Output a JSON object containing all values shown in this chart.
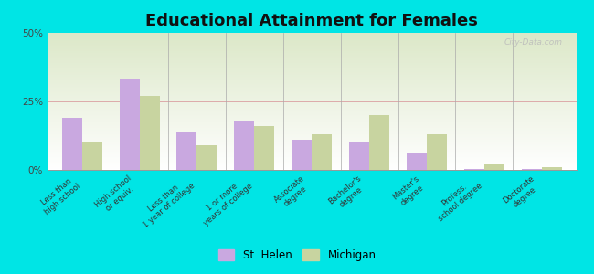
{
  "title": "Educational Attainment for Females",
  "categories": [
    "Less than\nhigh school",
    "High school\nor equiv.",
    "Less than\n1 year of college",
    "1 or more\nyears of college",
    "Associate\ndegree",
    "Bachelor's\ndegree",
    "Master's\ndegree",
    "Profess.\nschool degree",
    "Doctorate\ndegree"
  ],
  "st_helen": [
    19,
    33,
    14,
    18,
    11,
    10,
    6,
    0.5,
    0.3
  ],
  "michigan": [
    10,
    27,
    9,
    16,
    13,
    20,
    13,
    2,
    1
  ],
  "st_helen_color": "#c9a8e0",
  "michigan_color": "#c8d4a0",
  "bg_outer": "#00e5e5",
  "ylim": [
    0,
    50
  ],
  "yticks": [
    0,
    25,
    50
  ],
  "ytick_labels": [
    "0%",
    "25%",
    "50%"
  ],
  "title_fontsize": 13,
  "tick_fontsize": 6.0,
  "legend_label_1": "St. Helen",
  "legend_label_2": "Michigan",
  "bar_width": 0.35
}
